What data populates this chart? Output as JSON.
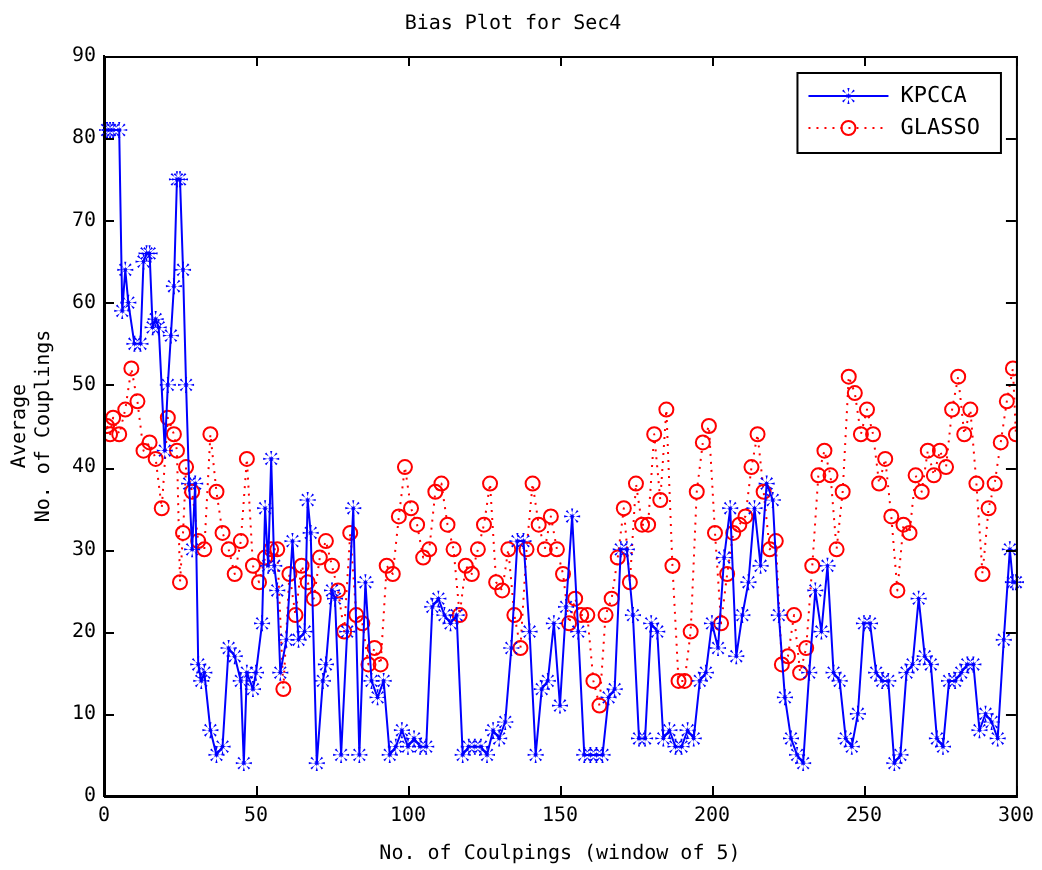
{
  "chart_data": {
    "type": "line",
    "title": "Bias Plot for Sec4",
    "xlabel": "No. of Coulpings (window of 5)",
    "ylabel": "Average\nNo. of Couplings",
    "xlim": [
      0,
      300
    ],
    "xticks": [
      0,
      50,
      100,
      150,
      200,
      250,
      300
    ],
    "ylim": [
      0,
      90
    ],
    "yticks": [
      0,
      10,
      20,
      30,
      40,
      50,
      60,
      70,
      80,
      90
    ],
    "grid": false,
    "legend": "top right",
    "series": [
      {
        "name": "KPCCA",
        "color": "#0000ff",
        "marker": "star",
        "line_style": "solid",
        "x": [
          1,
          2,
          3,
          5,
          6,
          7,
          8,
          10,
          12,
          13,
          14,
          15,
          16,
          17,
          18,
          20,
          21,
          22,
          23,
          24,
          25,
          26,
          27,
          28,
          29,
          30,
          31,
          32,
          33,
          35,
          37,
          39,
          41,
          43,
          45,
          46,
          47,
          49,
          50,
          52,
          53,
          54,
          55,
          56,
          57,
          58,
          60,
          62,
          64,
          66,
          67,
          68,
          70,
          72,
          73,
          75,
          76,
          78,
          80,
          82,
          84,
          86,
          88,
          90,
          92,
          94,
          96,
          98,
          100,
          102,
          104,
          106,
          108,
          110,
          112,
          114,
          116,
          118,
          120,
          122,
          124,
          126,
          128,
          130,
          132,
          134,
          136,
          138,
          140,
          142,
          144,
          146,
          148,
          150,
          152,
          154,
          156,
          158,
          160,
          162,
          164,
          166,
          168,
          170,
          172,
          174,
          176,
          178,
          180,
          182,
          184,
          186,
          188,
          190,
          192,
          194,
          196,
          198,
          200,
          202,
          204,
          206,
          208,
          210,
          212,
          214,
          216,
          218,
          220,
          222,
          224,
          226,
          228,
          230,
          232,
          234,
          236,
          238,
          240,
          242,
          244,
          246,
          248,
          250,
          252,
          254,
          256,
          258,
          260,
          262,
          264,
          266,
          268,
          270,
          272,
          274,
          276,
          278,
          280,
          282,
          284,
          286,
          288,
          290,
          292,
          294,
          296,
          298,
          299,
          300
        ],
        "values": [
          81,
          81,
          81,
          81,
          59,
          64,
          60,
          55,
          55,
          65,
          66,
          66,
          57,
          58,
          57,
          42,
          50,
          56,
          62,
          75,
          75,
          64,
          50,
          38,
          30,
          38,
          16,
          14,
          15,
          8,
          5,
          6,
          18,
          17,
          14,
          4,
          15,
          13,
          15,
          21,
          35,
          28,
          41,
          28,
          25,
          15,
          19,
          31,
          19,
          20,
          36,
          32,
          4,
          14,
          16,
          25,
          24,
          5,
          20,
          35,
          5,
          26,
          14,
          12,
          14,
          5,
          6,
          8,
          6,
          7,
          6,
          6,
          23,
          24,
          22,
          21,
          22,
          5,
          6,
          6,
          6,
          5,
          8,
          7,
          9,
          18,
          31,
          31,
          20,
          5,
          13,
          14,
          21,
          11,
          23,
          34,
          20,
          5,
          5,
          5,
          5,
          12,
          13,
          30,
          30,
          22,
          7,
          7,
          21,
          20,
          7,
          8,
          6,
          6,
          8,
          7,
          14,
          15,
          21,
          18,
          29,
          35,
          17,
          22,
          26,
          35,
          28,
          38,
          36,
          22,
          12,
          7,
          5,
          4,
          15,
          25,
          20,
          28,
          15,
          14,
          7,
          6,
          10,
          21,
          21,
          15,
          14,
          14,
          4,
          5,
          15,
          16,
          24,
          17,
          16,
          7,
          6,
          14,
          14,
          15,
          16,
          16,
          8,
          10,
          9,
          7,
          19,
          30,
          26,
          26
        ]
      },
      {
        "name": "GLASSO",
        "color": "#ff0000",
        "marker": "circle",
        "line_style": "dotted",
        "x": [
          1,
          2,
          3,
          5,
          7,
          9,
          11,
          13,
          15,
          17,
          19,
          21,
          23,
          24,
          25,
          26,
          27,
          29,
          31,
          33,
          35,
          37,
          39,
          41,
          43,
          45,
          47,
          49,
          51,
          53,
          55,
          57,
          59,
          61,
          63,
          65,
          67,
          69,
          71,
          73,
          75,
          77,
          79,
          81,
          83,
          85,
          87,
          89,
          91,
          93,
          95,
          97,
          99,
          101,
          103,
          105,
          107,
          109,
          111,
          113,
          115,
          117,
          119,
          121,
          123,
          125,
          127,
          129,
          131,
          133,
          135,
          137,
          139,
          141,
          143,
          145,
          147,
          149,
          151,
          153,
          155,
          157,
          159,
          161,
          163,
          165,
          167,
          169,
          171,
          173,
          175,
          177,
          179,
          181,
          183,
          185,
          187,
          189,
          191,
          193,
          195,
          197,
          199,
          201,
          203,
          205,
          207,
          209,
          211,
          213,
          215,
          217,
          219,
          221,
          223,
          225,
          227,
          229,
          231,
          233,
          235,
          237,
          239,
          241,
          243,
          245,
          247,
          249,
          251,
          253,
          255,
          257,
          259,
          261,
          263,
          265,
          267,
          269,
          271,
          273,
          275,
          277,
          279,
          281,
          283,
          285,
          287,
          289,
          291,
          293,
          295,
          297,
          299,
          300
        ],
        "values": [
          45,
          44,
          46,
          44,
          47,
          52,
          48,
          42,
          43,
          41,
          35,
          46,
          44,
          42,
          26,
          32,
          40,
          37,
          31,
          30,
          44,
          37,
          32,
          30,
          27,
          31,
          41,
          28,
          26,
          29,
          30,
          30,
          13,
          27,
          22,
          28,
          26,
          24,
          29,
          31,
          28,
          25,
          20,
          32,
          22,
          21,
          16,
          18,
          16,
          28,
          27,
          34,
          40,
          35,
          33,
          29,
          30,
          37,
          38,
          33,
          30,
          22,
          28,
          27,
          30,
          33,
          38,
          26,
          25,
          30,
          22,
          18,
          30,
          38,
          33,
          30,
          34,
          30,
          27,
          21,
          24,
          22,
          22,
          14,
          11,
          22,
          24,
          29,
          35,
          26,
          38,
          33,
          33,
          44,
          36,
          47,
          28,
          14,
          14,
          20,
          37,
          43,
          45,
          32,
          21,
          27,
          32,
          33,
          34,
          40,
          44,
          37,
          30,
          31,
          16,
          17,
          22,
          15,
          18,
          28,
          39,
          42,
          39,
          30,
          37,
          51,
          49,
          44,
          47,
          44,
          38,
          41,
          34,
          25,
          33,
          32,
          39,
          37,
          42,
          39,
          42,
          40,
          47,
          51,
          44,
          47,
          38,
          27,
          35,
          38,
          43,
          48,
          52,
          44
        ]
      }
    ]
  }
}
